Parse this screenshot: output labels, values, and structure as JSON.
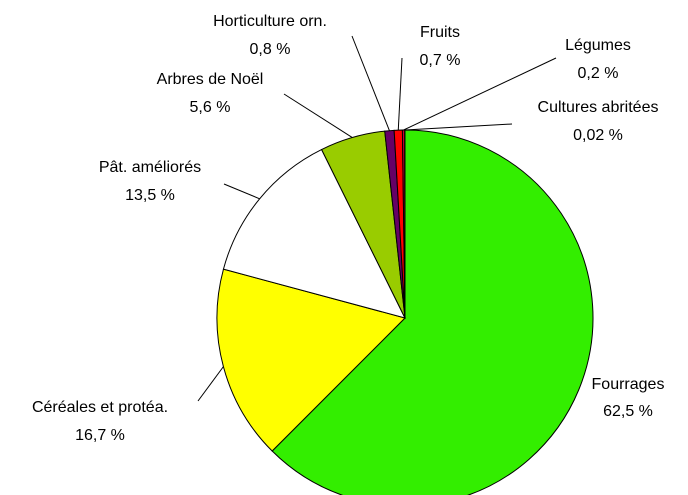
{
  "chart_data": {
    "type": "pie",
    "categories": [
      "Fourrages",
      "Céréales et protéa.",
      "Pât. améliorés",
      "Arbres de Noël",
      "Horticulture orn.",
      "Fruits",
      "Légumes",
      "Cultures abritées"
    ],
    "values": [
      62.5,
      16.7,
      13.5,
      5.6,
      0.8,
      0.7,
      0.2,
      0.02
    ],
    "value_labels": [
      "62,5 %",
      "16,7 %",
      "13,5 %",
      "5,6 %",
      "0,8 %",
      "0,7 %",
      "0,2 %",
      "0,02 %"
    ],
    "colors": [
      "#33ee00",
      "#ffff00",
      "#ffffff",
      "#99cc00",
      "#660066",
      "#ff0000",
      "#cc0033",
      "#3366ff"
    ]
  }
}
